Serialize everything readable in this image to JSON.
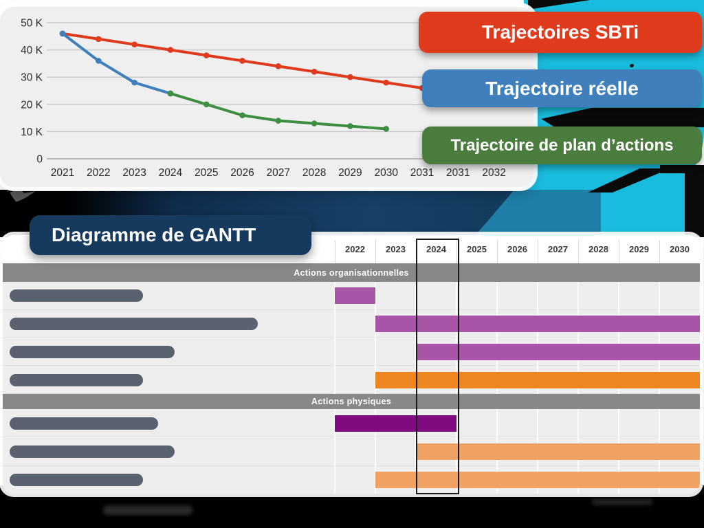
{
  "palette": {
    "cyan": "#1ABCDE",
    "teal": "#1F7FA8",
    "navy": "#16395E",
    "black": "#0a0a0a",
    "card_gray": "#EFEFEF",
    "pill_gray": "#5A6270",
    "band_gray": "#888888"
  },
  "legend": {
    "items": [
      {
        "label": "Trajectoires SBTi",
        "color": "#E03A1C"
      },
      {
        "label": "Trajectoire réelle",
        "color": "#3F80BC"
      },
      {
        "label": "Trajectoire de plan d’actions",
        "color": "#4A7C3E"
      }
    ]
  },
  "chart_data": [
    {
      "type": "line",
      "title": "",
      "yticks": [
        "0",
        "10 K",
        "20 K",
        "30 K",
        "40 K",
        "50 K"
      ],
      "xticks": [
        "2021",
        "2022",
        "2023",
        "2024",
        "2025",
        "2026",
        "2027",
        "2028",
        "2029",
        "2030",
        "2031",
        "2031",
        "2032"
      ],
      "ylim": [
        0,
        50000
      ],
      "grid": true,
      "legend_position": "right",
      "series": [
        {
          "name": "Trajectoires SBTi",
          "color": "#E03A1C",
          "x": [
            2021,
            2022,
            2023,
            2024,
            2025,
            2026,
            2027,
            2028,
            2029,
            2030,
            2031
          ],
          "values": [
            46000,
            44000,
            42000,
            40000,
            38000,
            36000,
            34000,
            32000,
            30000,
            28000,
            26000
          ]
        },
        {
          "name": "Trajectoire réelle",
          "color": "#3F80BC",
          "x": [
            2021,
            2022,
            2023,
            2024
          ],
          "values": [
            46000,
            36000,
            28000,
            24000
          ]
        },
        {
          "name": "Trajectoire de plan d’actions",
          "color": "#3E8E41",
          "x": [
            2024,
            2025,
            2026,
            2027,
            2028,
            2029,
            2030
          ],
          "values": [
            24000,
            20000,
            16000,
            14000,
            13000,
            12000,
            11000
          ]
        }
      ]
    },
    {
      "type": "gantt",
      "title": "Diagramme de GANTT",
      "years": [
        "2022",
        "2023",
        "2024",
        "2025",
        "2026",
        "2027",
        "2028",
        "2029",
        "2030"
      ],
      "highlight_year": "2024",
      "sections": [
        {
          "label": "Actions organisationnelles",
          "rows": [
            {
              "pill_width": 194,
              "bar": {
                "start_year": 2022,
                "end_year": 2022,
                "color": "#A855A8"
              }
            },
            {
              "pill_width": 361,
              "bar": {
                "start_year": 2023,
                "end_year": 2030,
                "color": "#A855A8"
              }
            },
            {
              "pill_width": 240,
              "bar": {
                "start_year": 2024,
                "end_year": 2030,
                "color": "#A855A8"
              }
            },
            {
              "pill_width": 194,
              "bar": {
                "start_year": 2023,
                "end_year": 2030,
                "color": "#ED861E"
              }
            }
          ]
        },
        {
          "label": "Actions physiques",
          "rows": [
            {
              "pill_width": 216,
              "bar": {
                "start_year": 2022,
                "end_year": 2024,
                "color": "#800B80"
              }
            },
            {
              "pill_width": 240,
              "bar": {
                "start_year": 2024,
                "end_year": 2030,
                "color": "#EFA263"
              }
            },
            {
              "pill_width": 194,
              "bar": {
                "start_year": 2023,
                "end_year": 2030,
                "color": "#EFA263"
              }
            }
          ]
        }
      ]
    }
  ]
}
